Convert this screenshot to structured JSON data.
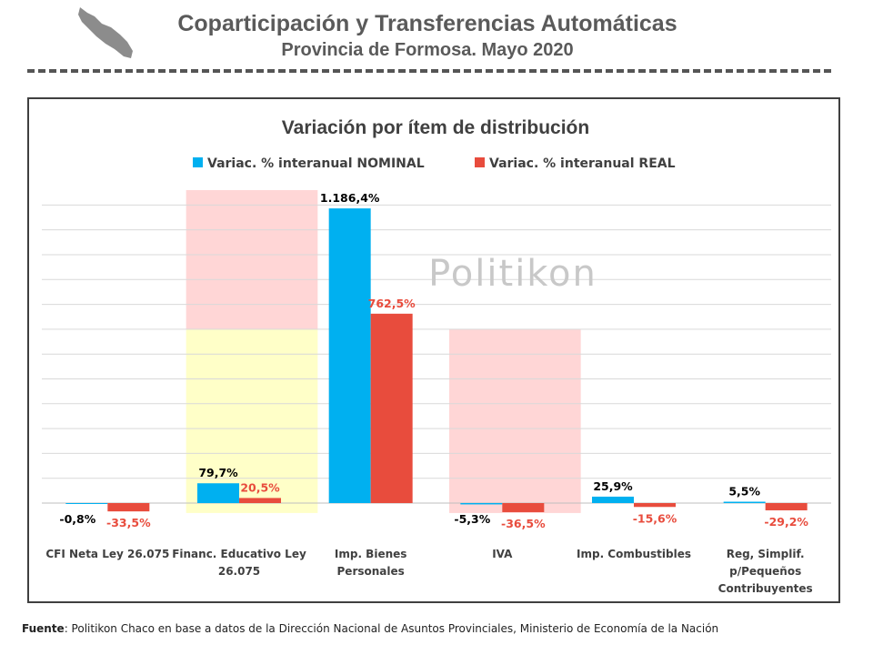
{
  "header": {
    "title": "Coparticipación y Transferencias Automáticas",
    "subtitle": "Provincia de Formosa. Mayo 2020"
  },
  "watermark": "Politikon",
  "source": {
    "label": "Fuente",
    "text": ": Politikon Chaco en base a datos de la Dirección Nacional de Asuntos Provinciales, Ministerio de Economía de la Nación"
  },
  "chart_data": {
    "type": "bar",
    "title": "Variación por ítem de distribución",
    "legend_position": "top",
    "grid": true,
    "categories": [
      [
        "CFI Neta Ley 26.075"
      ],
      [
        "Financ. Educativo Ley",
        "26.075"
      ],
      [
        "Imp. Bienes",
        "Personales"
      ],
      [
        "IVA"
      ],
      [
        "Imp. Combustibles"
      ],
      [
        "Reg, Simplif.",
        "p/Pequeños",
        "Contribuyentes"
      ]
    ],
    "series": [
      {
        "name": "Variac. % interanual NOMINAL",
        "color": "#00b0f0",
        "label_color": "#000000",
        "values": [
          -0.8,
          79.7,
          1186.4,
          -5.3,
          25.9,
          5.5
        ],
        "labels": [
          "-0,8%",
          "79,7%",
          "1.186,4%",
          "-5,3%",
          "25,9%",
          "5,5%"
        ]
      },
      {
        "name": "Variac. % interanual REAL",
        "color": "#e84c3d",
        "label_color": "#e84c3d",
        "values": [
          -33.5,
          20.5,
          762.5,
          -36.5,
          -15.6,
          -29.2
        ],
        "labels": [
          "-33,5%",
          "20,5%",
          "762,5%",
          "-36,5%",
          "-15,6%",
          "-29,2%"
        ]
      }
    ],
    "ylim": [
      -40,
      1260
    ],
    "highlights": [
      {
        "color": "#ffd6d6",
        "category_start": 1,
        "category_end": 2,
        "y_range": [
          700,
          1260
        ]
      },
      {
        "color": "#ffffc8",
        "category_start": 1,
        "category_end": 2,
        "y_range": [
          -40,
          700
        ]
      },
      {
        "color": "#ffd6d6",
        "category_start": 3,
        "category_end": 4,
        "y_range": [
          -40,
          700
        ]
      }
    ]
  }
}
